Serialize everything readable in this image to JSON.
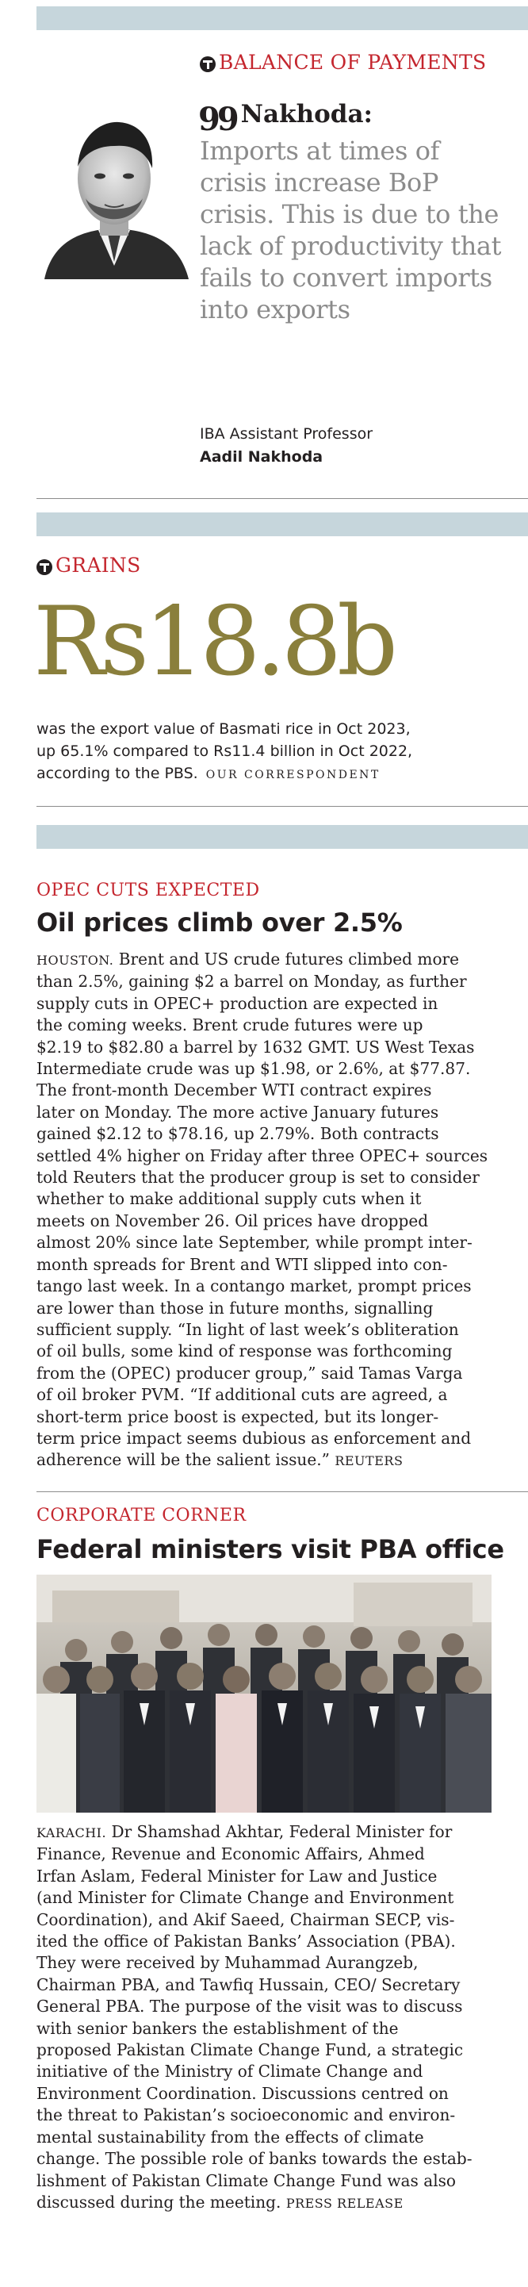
{
  "bop": {
    "section": "BALANCE OF PAYMENTS",
    "speaker": "Nakhoda:",
    "quote": "Imports at times of crisis increase BoP crisis. This is due to the lack of productivity that fails to convert imports into exports",
    "role": "IBA Assistant Professor",
    "name": "Aadil Nakhoda"
  },
  "grains": {
    "section": "GRAINS",
    "big_figure": "Rs18.8b",
    "lines": [
      "was the export value of Basmati rice in Oct 2023,",
      "up 65.1% compared to Rs11.4 billion in Oct 2022,",
      "according to the PBS."
    ],
    "byline": "OUR CORRESPONDENT"
  },
  "opec": {
    "kicker": "OPEC CUTS EXPECTED",
    "headline": "Oil prices climb over 2.5%",
    "dateline": "HOUSTON.",
    "lines": [
      "Brent and US crude futures climbed more",
      "than 2.5%, gaining $2 a barrel on Monday, as further",
      "supply cuts in OPEC+ production are expected in",
      "the coming weeks. Brent crude futures were up",
      "$2.19 to $82.80 a barrel by 1632 GMT. US West Texas",
      "Intermediate crude was up $1.98, or 2.6%, at $77.87.",
      "The front-month December WTI contract expires",
      "later on Monday. The more active January futures",
      "gained $2.12 to $78.16, up 2.79%. Both contracts",
      "settled 4% higher on Friday after three OPEC+ sources",
      "told Reuters that the producer group is set to consider",
      "whether to make additional supply cuts when it",
      "meets on November 26. Oil prices have dropped",
      "almost 20% since late September, while prompt inter-",
      "month spreads for Brent and WTI slipped into con-",
      "tango last week. In a contango market, prompt prices",
      "are lower than those in future months, signalling",
      "sufficient supply. “In light of last week’s obliteration",
      "of oil bulls, some kind of response was forthcoming",
      "from the (OPEC) producer group,” said Tamas Varga",
      "of oil broker PVM. “If additional cuts are agreed, a",
      "short-term price boost is expected, but its longer-",
      "term price impact seems dubious as enforcement and",
      "adherence will be the salient issue.”"
    ],
    "credit": "REUTERS"
  },
  "pba": {
    "kicker": "CORPORATE CORNER",
    "headline": "Federal ministers visit PBA office",
    "dateline": "KARACHI.",
    "lines": [
      "Dr Shamshad Akhtar, Federal Minister for",
      "Finance, Revenue and Economic Affairs, Ahmed",
      "Irfan Aslam, Federal Minister for Law and Justice",
      "(and Minister for Climate Change and Environment",
      "Coordination), and Akif Saeed, Chairman SECP, vis-",
      "ited the office of Pakistan Banks’ Association (PBA).",
      "They were received by Muhammad Aurangzeb,",
      "Chairman PBA, and Tawfiq Hussain, CEO/ Secretary",
      "General PBA. The purpose of the visit was to discuss",
      "with senior bankers the establishment of the",
      "proposed Pakistan Climate Change Fund, a strategic",
      "initiative of the Ministry of Climate Change and",
      "Environment Coordination. Discussions centred on",
      "the threat to Pakistan’s socioeconomic and environ-",
      "mental sustainability from the effects of climate",
      "change. The possible role of banks towards the estab-",
      "lishment of Pakistan Climate Change Fund was also",
      "discussed during the meeting."
    ],
    "credit": "PRESS RELEASE"
  },
  "colors": {
    "accent_red": "#c4262e",
    "grey_text": "#8b8b8b",
    "olive_figure": "#8a7f3c",
    "band_blue": "#c6d6dc"
  }
}
